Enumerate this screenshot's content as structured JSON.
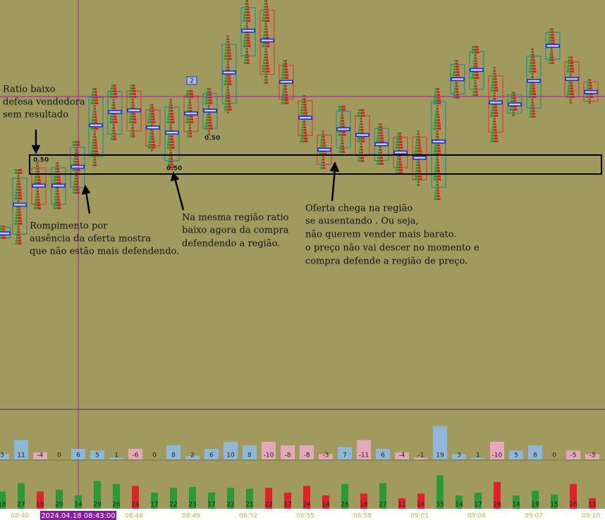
{
  "chart_data": {
    "type": "footprint",
    "annotations": [
      {
        "lines": [
          "Ratio baixo",
          "defesa vendedora",
          "sem resultado"
        ]
      },
      {
        "lines": [
          "Rompimento por",
          "ausência da oferta mostra",
          "que não estão mais defendendo."
        ]
      },
      {
        "lines": [
          "Na mesma região ratio",
          "baixo agora da compra",
          "defendendo a região."
        ]
      },
      {
        "lines": [
          "Oferta chega na região",
          "se ausentando . Ou seja,",
          "não querem vender mais barato.",
          "o preço não vai descer no momento e",
          "compra defende a região de preço."
        ]
      }
    ],
    "ratio_labels": [
      "0.50",
      "0.50",
      "0.50"
    ],
    "marker_label": "2",
    "crosshair_label": "2024.04.18 08:43:00",
    "delta": [
      3,
      11,
      -4,
      0,
      6,
      5,
      1,
      -6,
      0,
      8,
      2,
      6,
      10,
      8,
      -10,
      -8,
      -8,
      -3,
      7,
      -11,
      6,
      -4,
      -1,
      19,
      3,
      1,
      -10,
      5,
      8,
      0,
      -5,
      -3
    ],
    "volume": [
      18,
      27,
      18,
      20,
      14,
      29,
      26,
      24,
      17,
      22,
      23,
      17,
      22,
      21,
      22,
      17,
      24,
      14,
      26,
      16,
      27,
      11,
      16,
      35,
      14,
      17,
      28,
      14,
      19,
      15,
      26,
      11
    ],
    "times": [
      "08:40",
      "08:46",
      "08:49",
      "08:52",
      "08:55",
      "08:58",
      "09:01",
      "09:04",
      "09:07",
      "09:10"
    ],
    "colors": {
      "positive": "#8fb8d8",
      "negative": "#e2aab8",
      "buy": "#2a9a36",
      "sell": "#e0202a"
    }
  }
}
